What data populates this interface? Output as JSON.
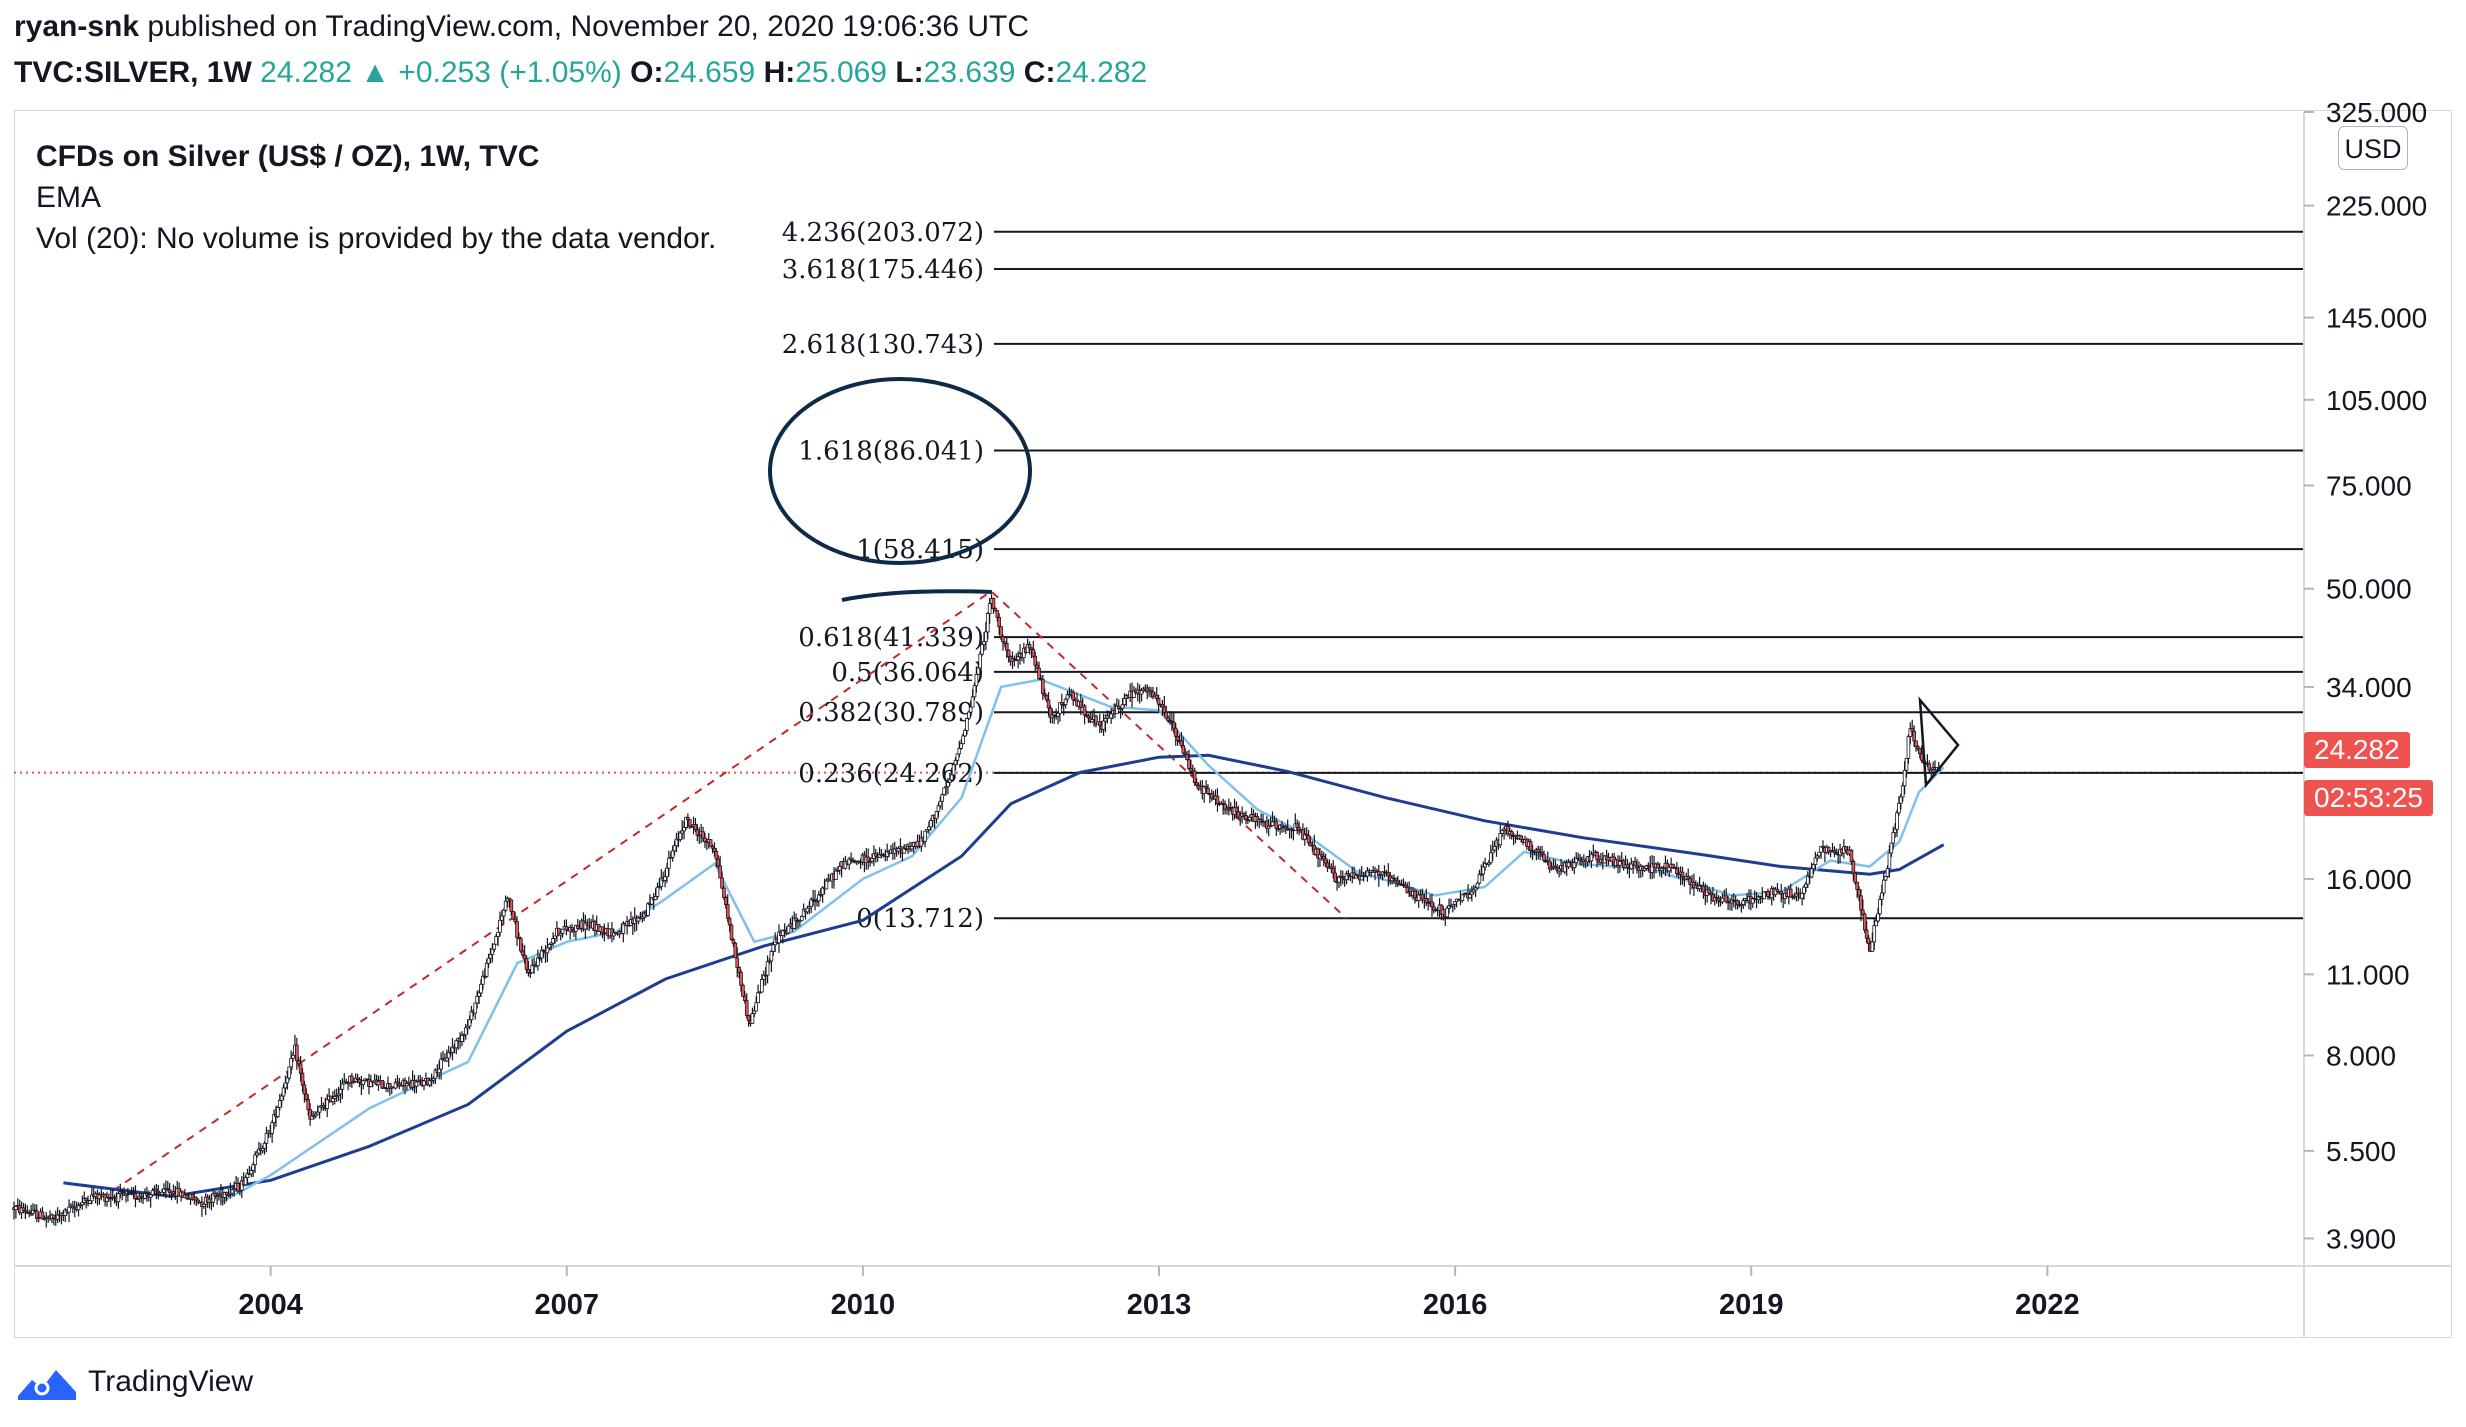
{
  "header": {
    "author": "ryan-snk",
    "published": "published on TradingView.com, November 20, 2020 19:06:36 UTC",
    "symbol": "TVC:SILVER, 1W",
    "last": "24.282",
    "change": "+0.253 (+1.05%)",
    "open_label": "O:",
    "open": "24.659",
    "high_label": "H:",
    "high": "25.069",
    "low_label": "L:",
    "low": "23.639",
    "close_label": "C:",
    "close": "24.282"
  },
  "legend": {
    "title": "CFDs on Silver (US$ / OZ), 1W, TVC",
    "ema": "EMA",
    "volume": "Vol (20): No volume is provided by the data vendor."
  },
  "axis": {
    "currency": "USD",
    "price_tag": "24.282",
    "timer_tag": "02:53:25"
  },
  "footer": {
    "brand": "TradingView"
  },
  "colors": {
    "up": "#26a69a",
    "down": "#ef5350",
    "ema_fast": "#7fc1ec",
    "ema_slow": "#1f3d8f",
    "annotation": "#0e2a47"
  },
  "chart_data": {
    "type": "candlestick",
    "title": "CFDs on Silver (US$ / OZ), 1W, TVC",
    "y_scale": "log",
    "ylim": [
      3.5,
      325
    ],
    "y_ticks": [
      "325.000",
      "225.000",
      "145.000",
      "105.000",
      "75.000",
      "50.000",
      "34.000",
      "24.282",
      "16.000",
      "11.000",
      "8.000",
      "5.500",
      "3.900"
    ],
    "x_ticks": [
      "2004",
      "2007",
      "2010",
      "2013",
      "2016",
      "2019",
      "2022"
    ],
    "xlim": [
      2001.4,
      2024.6
    ],
    "fib_levels": [
      {
        "label": "4.236(203.072)",
        "value": 203.072
      },
      {
        "label": "3.618(175.446)",
        "value": 175.446
      },
      {
        "label": "2.618(130.743)",
        "value": 130.743
      },
      {
        "label": "1.618(86.041)",
        "value": 86.041
      },
      {
        "label": "1(58.415)",
        "value": 58.415
      },
      {
        "label": "0.618(41.339)",
        "value": 41.339
      },
      {
        "label": "0.5(36.064)",
        "value": 36.064
      },
      {
        "label": "0.382(30.789)",
        "value": 30.789
      },
      {
        "label": "0.236(24.262)",
        "value": 24.262
      },
      {
        "label": "0(13.712)",
        "value": 13.712
      }
    ],
    "fib_trend_points": [
      [
        2002.4,
        4.7
      ],
      [
        2011.3,
        49.5
      ],
      [
        2014.9,
        13.7
      ]
    ],
    "price_path": [
      [
        2001.4,
        4.4
      ],
      [
        2001.8,
        4.2
      ],
      [
        2002.2,
        4.6
      ],
      [
        2002.6,
        4.6
      ],
      [
        2003.0,
        4.7
      ],
      [
        2003.3,
        4.5
      ],
      [
        2003.7,
        4.8
      ],
      [
        2004.0,
        6.0
      ],
      [
        2004.25,
        8.2
      ],
      [
        2004.4,
        6.2
      ],
      [
        2004.8,
        7.3
      ],
      [
        2005.2,
        7.1
      ],
      [
        2005.6,
        7.2
      ],
      [
        2006.0,
        9.0
      ],
      [
        2006.3,
        13.0
      ],
      [
        2006.4,
        15.0
      ],
      [
        2006.6,
        11.0
      ],
      [
        2006.9,
        13.0
      ],
      [
        2007.2,
        13.4
      ],
      [
        2007.5,
        12.9
      ],
      [
        2007.8,
        14.0
      ],
      [
        2008.0,
        16.5
      ],
      [
        2008.2,
        20.2
      ],
      [
        2008.5,
        18.0
      ],
      [
        2008.7,
        12.0
      ],
      [
        2008.85,
        9.0
      ],
      [
        2009.1,
        12.5
      ],
      [
        2009.4,
        14.0
      ],
      [
        2009.8,
        17.0
      ],
      [
        2010.2,
        17.5
      ],
      [
        2010.6,
        18.5
      ],
      [
        2010.9,
        24.0
      ],
      [
        2011.1,
        32.0
      ],
      [
        2011.3,
        48.0
      ],
      [
        2011.5,
        37.0
      ],
      [
        2011.7,
        40.0
      ],
      [
        2011.9,
        30.0
      ],
      [
        2012.1,
        33.0
      ],
      [
        2012.4,
        29.0
      ],
      [
        2012.7,
        33.0
      ],
      [
        2012.9,
        33.5
      ],
      [
        2013.1,
        30.0
      ],
      [
        2013.4,
        23.0
      ],
      [
        2013.7,
        21.0
      ],
      [
        2014.0,
        20.0
      ],
      [
        2014.4,
        19.5
      ],
      [
        2014.8,
        16.0
      ],
      [
        2015.2,
        16.5
      ],
      [
        2015.6,
        15.0
      ],
      [
        2015.9,
        14.0
      ],
      [
        2016.2,
        15.5
      ],
      [
        2016.5,
        19.5
      ],
      [
        2016.8,
        18.0
      ],
      [
        2017.0,
        16.5
      ],
      [
        2017.4,
        17.5
      ],
      [
        2017.8,
        16.8
      ],
      [
        2018.2,
        16.7
      ],
      [
        2018.6,
        15.0
      ],
      [
        2018.9,
        14.5
      ],
      [
        2019.2,
        15.2
      ],
      [
        2019.5,
        15.0
      ],
      [
        2019.7,
        18.0
      ],
      [
        2020.0,
        17.8
      ],
      [
        2020.2,
        12.0
      ],
      [
        2020.4,
        17.5
      ],
      [
        2020.55,
        24.0
      ],
      [
        2020.6,
        29.0
      ],
      [
        2020.75,
        25.0
      ],
      [
        2020.9,
        24.28
      ]
    ],
    "ema_fast_path": [
      [
        2003.5,
        4.5
      ],
      [
        2004.0,
        5.0
      ],
      [
        2005.0,
        6.5
      ],
      [
        2006.0,
        7.8
      ],
      [
        2006.5,
        11.5
      ],
      [
        2007.0,
        12.5
      ],
      [
        2007.5,
        13.0
      ],
      [
        2008.0,
        14.8
      ],
      [
        2008.5,
        17.0
      ],
      [
        2008.9,
        12.5
      ],
      [
        2009.3,
        13.0
      ],
      [
        2010.0,
        16.0
      ],
      [
        2010.5,
        17.5
      ],
      [
        2011.0,
        22.0
      ],
      [
        2011.4,
        34.0
      ],
      [
        2011.8,
        35.0
      ],
      [
        2012.5,
        31.5
      ],
      [
        2013.0,
        31.0
      ],
      [
        2013.5,
        25.0
      ],
      [
        2014.0,
        21.0
      ],
      [
        2014.5,
        19.0
      ],
      [
        2015.0,
        16.5
      ],
      [
        2015.8,
        15.0
      ],
      [
        2016.3,
        15.5
      ],
      [
        2016.7,
        17.8
      ],
      [
        2017.2,
        17.0
      ],
      [
        2018.0,
        16.6
      ],
      [
        2018.8,
        15.0
      ],
      [
        2019.3,
        15.2
      ],
      [
        2019.8,
        17.2
      ],
      [
        2020.2,
        16.8
      ],
      [
        2020.5,
        18.5
      ],
      [
        2020.7,
        22.5
      ],
      [
        2020.95,
        24.8
      ]
    ],
    "ema_slow_path": [
      [
        2001.9,
        4.85
      ],
      [
        2003.0,
        4.6
      ],
      [
        2004.0,
        4.9
      ],
      [
        2005.0,
        5.6
      ],
      [
        2006.0,
        6.6
      ],
      [
        2007.0,
        8.8
      ],
      [
        2008.0,
        10.8
      ],
      [
        2009.0,
        12.3
      ],
      [
        2010.0,
        13.6
      ],
      [
        2011.0,
        17.5
      ],
      [
        2011.5,
        21.5
      ],
      [
        2012.2,
        24.3
      ],
      [
        2013.0,
        25.8
      ],
      [
        2013.5,
        26.0
      ],
      [
        2014.3,
        24.4
      ],
      [
        2015.3,
        22.0
      ],
      [
        2016.3,
        20.1
      ],
      [
        2017.3,
        18.8
      ],
      [
        2018.5,
        17.6
      ],
      [
        2019.3,
        16.8
      ],
      [
        2020.2,
        16.3
      ],
      [
        2020.5,
        16.6
      ],
      [
        2020.95,
        18.3
      ]
    ]
  }
}
